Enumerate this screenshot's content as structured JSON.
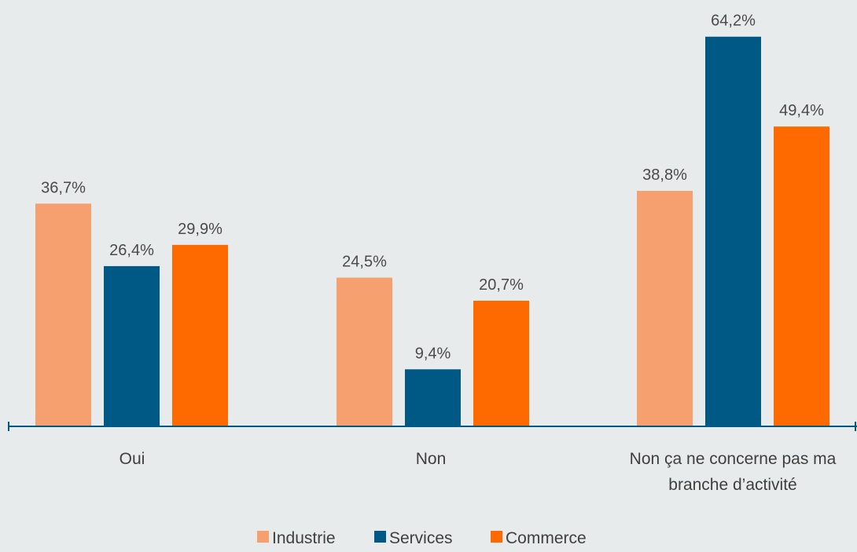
{
  "chart_data": {
    "type": "bar",
    "categories": [
      [
        "Oui"
      ],
      [
        "Non"
      ],
      [
        "Non ça ne concerne pas ma",
        "branche d’activité"
      ]
    ],
    "series": [
      {
        "name": "Industrie",
        "values": [
          36.7,
          24.5,
          38.8
        ],
        "labels": [
          "36,7%",
          "24,5%",
          "38,8%"
        ],
        "color": "#f6a06f"
      },
      {
        "name": "Services",
        "values": [
          26.4,
          9.4,
          64.2
        ],
        "labels": [
          "26,4%",
          "9,4%",
          "64,2%"
        ],
        "color": "#005984"
      },
      {
        "name": "Commerce",
        "values": [
          29.9,
          20.7,
          49.4
        ],
        "labels": [
          "29,9%",
          "20,7%",
          "49,4%"
        ],
        "color": "#ff6a00"
      }
    ],
    "ylim": [
      0,
      70
    ],
    "grid": false,
    "legend_position": "bottom-center",
    "axis_color": "#005984",
    "text_color": "#4a4a4a",
    "background": "#e8ebeb"
  }
}
